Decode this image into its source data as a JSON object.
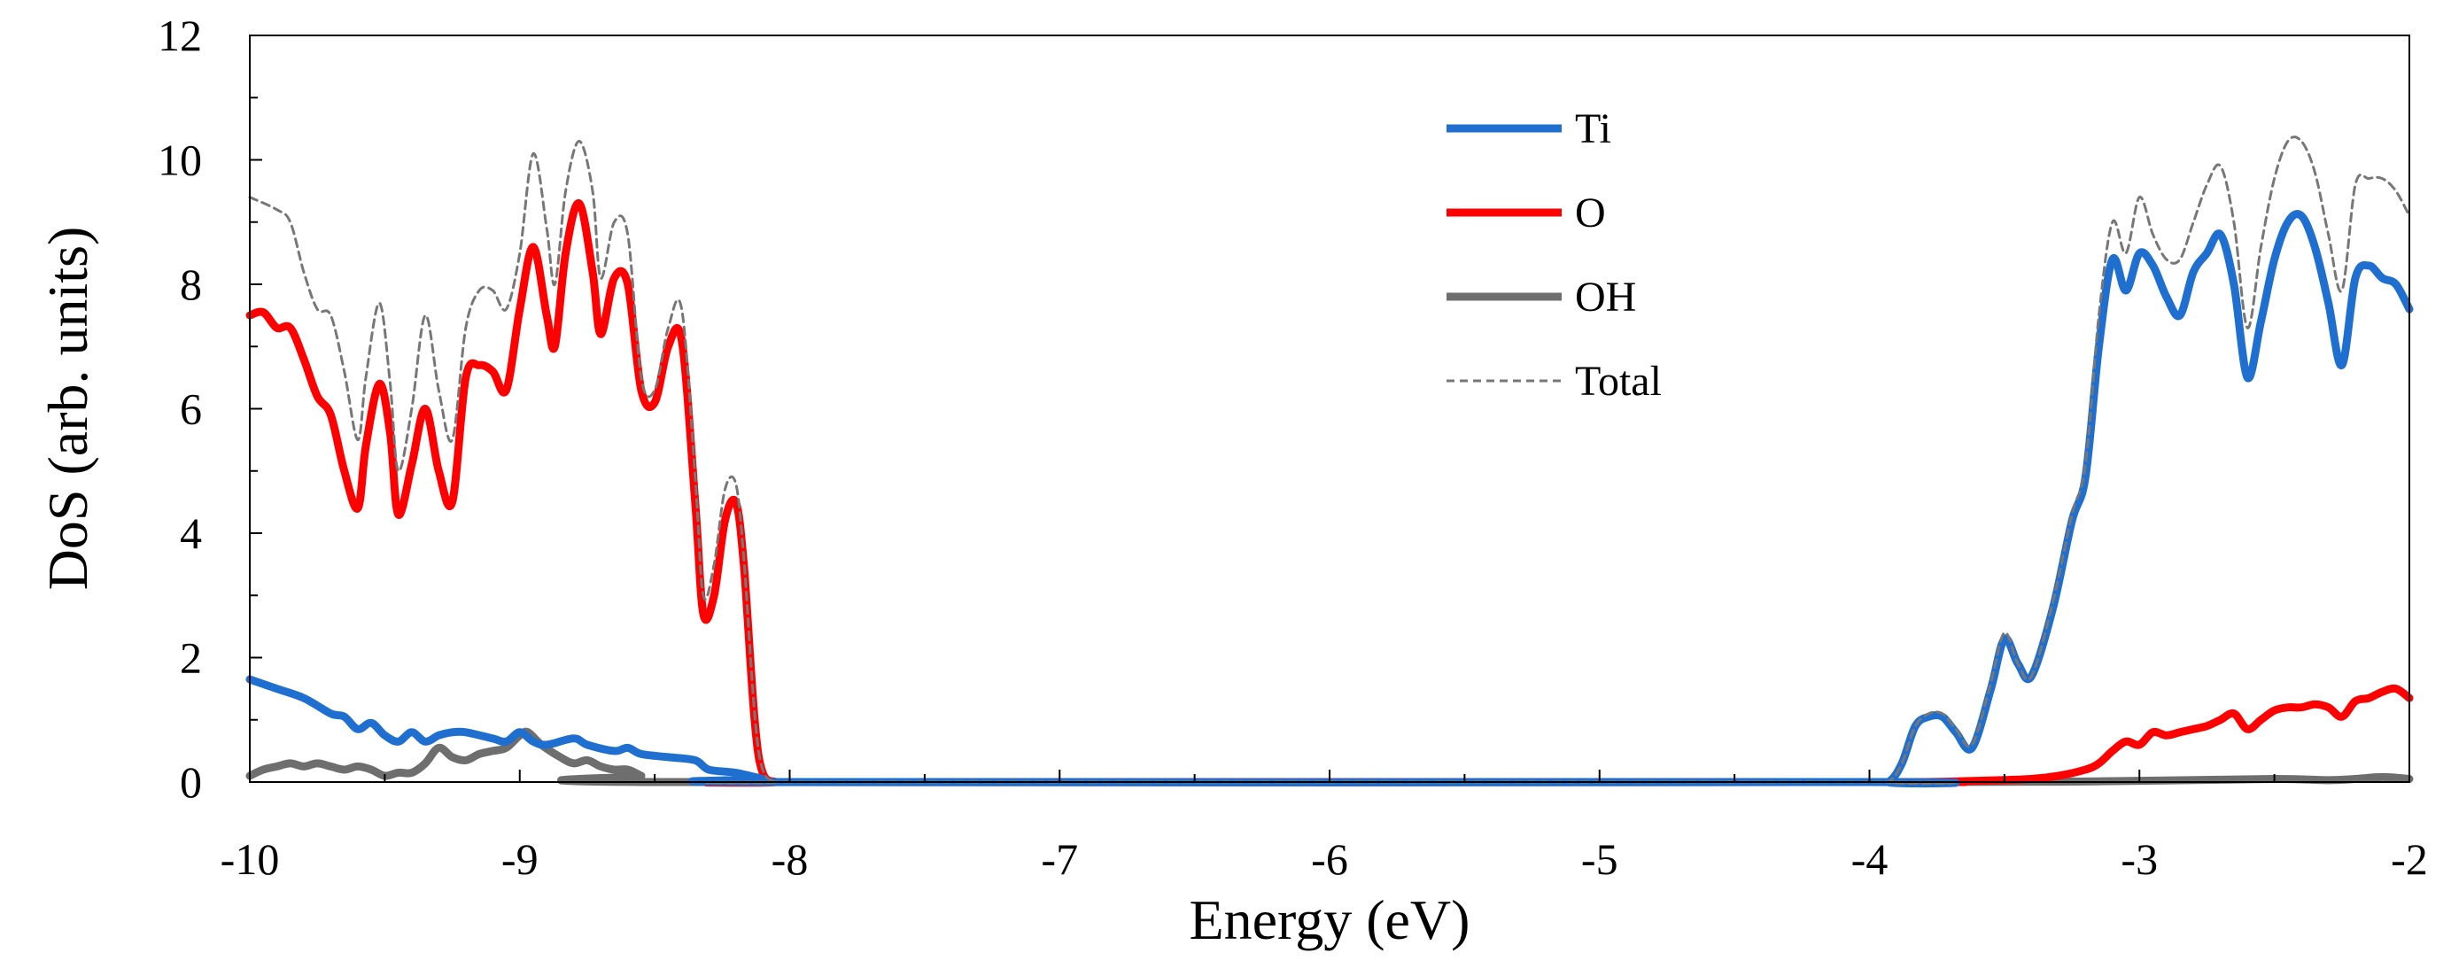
{
  "chart_data": {
    "type": "line",
    "title": "",
    "xlabel": "Energy (eV)",
    "ylabel": "DoS (arb. units)",
    "xlim": [
      -10,
      -2
    ],
    "ylim": [
      0,
      12
    ],
    "xticks": [
      -10,
      -9,
      -8,
      -7,
      -6,
      -5,
      -4,
      -3,
      -2
    ],
    "xtick_labels": [
      "-10",
      "-9",
      "-8",
      "-7",
      "-6",
      "-5",
      "-4",
      "-3",
      "-2"
    ],
    "yticks": [
      0,
      2,
      4,
      6,
      8,
      10,
      12
    ],
    "ytick_labels": [
      "0",
      "2",
      "4",
      "6",
      "8",
      "10",
      "12"
    ],
    "grid": false,
    "legend_position": "top-center",
    "series": [
      {
        "name": "Ti",
        "color": "#1f6fd0",
        "style": "solid-thick",
        "x": [
          -10,
          -9.9,
          -9.8,
          -9.7,
          -9.65,
          -9.6,
          -9.55,
          -9.5,
          -9.45,
          -9.4,
          -9.35,
          -9.3,
          -9.25,
          -9.2,
          -9.1,
          -9.05,
          -9.0,
          -8.95,
          -8.9,
          -8.8,
          -8.75,
          -8.65,
          -8.6,
          -8.55,
          -8.45,
          -8.35,
          -8.3,
          -8.2,
          -8.1,
          -8.05,
          -4.0,
          -3.93,
          -3.88,
          -3.83,
          -3.78,
          -3.73,
          -3.68,
          -3.62,
          -3.55,
          -3.5,
          -3.45,
          -3.4,
          -3.32,
          -3.25,
          -3.2,
          -3.15,
          -3.1,
          -3.05,
          -3.0,
          -2.95,
          -2.9,
          -2.85,
          -2.8,
          -2.75,
          -2.7,
          -2.65,
          -2.6,
          -2.55,
          -2.5,
          -2.45,
          -2.4,
          -2.35,
          -2.3,
          -2.25,
          -2.2,
          -2.15,
          -2.1,
          -2.05,
          -2.0
        ],
        "y": [
          1.65,
          1.5,
          1.35,
          1.1,
          1.05,
          0.85,
          0.95,
          0.75,
          0.65,
          0.8,
          0.65,
          0.75,
          0.8,
          0.8,
          0.7,
          0.65,
          0.8,
          0.65,
          0.6,
          0.7,
          0.6,
          0.5,
          0.55,
          0.45,
          0.4,
          0.35,
          0.2,
          0.15,
          0.05,
          0.0,
          0.0,
          0.0,
          0.3,
          0.9,
          1.05,
          1.05,
          0.8,
          0.55,
          1.5,
          2.3,
          1.9,
          1.7,
          2.8,
          4.2,
          4.9,
          7.0,
          8.4,
          7.9,
          8.5,
          8.3,
          7.8,
          7.5,
          8.2,
          8.5,
          8.8,
          8.0,
          6.5,
          7.4,
          8.4,
          9.0,
          9.1,
          8.6,
          7.7,
          6.7,
          8.1,
          8.3,
          8.1,
          8.0,
          7.6
        ]
      },
      {
        "name": "O",
        "color": "#ff0000",
        "style": "solid-thick",
        "x": [
          -10,
          -9.95,
          -9.9,
          -9.85,
          -9.8,
          -9.75,
          -9.7,
          -9.65,
          -9.6,
          -9.57,
          -9.52,
          -9.48,
          -9.45,
          -9.4,
          -9.35,
          -9.3,
          -9.25,
          -9.2,
          -9.15,
          -9.1,
          -9.05,
          -9.0,
          -8.95,
          -8.9,
          -8.87,
          -8.83,
          -8.78,
          -8.73,
          -8.7,
          -8.65,
          -8.6,
          -8.55,
          -8.5,
          -8.45,
          -8.4,
          -8.35,
          -8.32,
          -8.28,
          -8.24,
          -8.2,
          -8.17,
          -8.13,
          -8.1,
          -8.05,
          -8.0,
          -4.0,
          -3.8,
          -3.6,
          -3.4,
          -3.3,
          -3.2,
          -3.15,
          -3.1,
          -3.05,
          -3.0,
          -2.95,
          -2.9,
          -2.85,
          -2.8,
          -2.75,
          -2.7,
          -2.65,
          -2.6,
          -2.55,
          -2.5,
          -2.45,
          -2.4,
          -2.35,
          -2.3,
          -2.25,
          -2.2,
          -2.15,
          -2.1,
          -2.05,
          -2.0
        ],
        "y": [
          7.5,
          7.55,
          7.3,
          7.3,
          6.8,
          6.2,
          5.9,
          5.0,
          4.4,
          5.4,
          6.4,
          5.6,
          4.3,
          5.1,
          6.0,
          5.0,
          4.5,
          6.5,
          6.7,
          6.6,
          6.3,
          7.6,
          8.6,
          7.5,
          7.0,
          8.5,
          9.3,
          8.2,
          7.2,
          8.1,
          8.0,
          6.3,
          6.1,
          7.0,
          7.1,
          4.5,
          2.7,
          3.0,
          4.2,
          4.5,
          3.5,
          1.0,
          0.15,
          0.0,
          0.0,
          0.0,
          0.0,
          0.02,
          0.05,
          0.1,
          0.2,
          0.3,
          0.5,
          0.65,
          0.6,
          0.8,
          0.75,
          0.8,
          0.85,
          0.9,
          1.0,
          1.1,
          0.85,
          1.0,
          1.15,
          1.2,
          1.2,
          1.25,
          1.2,
          1.05,
          1.3,
          1.35,
          1.45,
          1.5,
          1.35
        ]
      },
      {
        "name": "OH",
        "color": "#6e6e6e",
        "style": "solid-thick",
        "x": [
          -10,
          -9.95,
          -9.9,
          -9.85,
          -9.8,
          -9.75,
          -9.7,
          -9.65,
          -9.6,
          -9.55,
          -9.5,
          -9.45,
          -9.4,
          -9.35,
          -9.3,
          -9.25,
          -9.2,
          -9.15,
          -9.1,
          -9.05,
          -9.0,
          -8.97,
          -8.92,
          -8.85,
          -8.8,
          -8.75,
          -8.7,
          -8.65,
          -8.6,
          -8.55,
          -8.5,
          -4.0,
          -3.0,
          -2.5,
          -2.3,
          -2.2,
          -2.1,
          -2.0
        ],
        "y": [
          0.1,
          0.2,
          0.25,
          0.3,
          0.25,
          0.3,
          0.25,
          0.2,
          0.25,
          0.2,
          0.1,
          0.15,
          0.15,
          0.3,
          0.55,
          0.4,
          0.35,
          0.45,
          0.5,
          0.55,
          0.75,
          0.8,
          0.6,
          0.4,
          0.3,
          0.35,
          0.25,
          0.2,
          0.2,
          0.1,
          0.0,
          0.0,
          0.02,
          0.05,
          0.03,
          0.05,
          0.08,
          0.05
        ]
      },
      {
        "name": "Total",
        "color": "#777777",
        "style": "dashed-thin",
        "x": [
          -10,
          -9.9,
          -9.85,
          -9.8,
          -9.75,
          -9.7,
          -9.65,
          -9.6,
          -9.57,
          -9.52,
          -9.48,
          -9.45,
          -9.4,
          -9.35,
          -9.3,
          -9.25,
          -9.2,
          -9.15,
          -9.1,
          -9.05,
          -9.0,
          -8.95,
          -8.9,
          -8.87,
          -8.83,
          -8.78,
          -8.73,
          -8.7,
          -8.65,
          -8.6,
          -8.55,
          -8.5,
          -8.45,
          -8.4,
          -8.35,
          -8.32,
          -8.28,
          -8.24,
          -8.2,
          -8.17,
          -8.13,
          -8.1,
          -8.05,
          -8.0,
          -4.0,
          -3.93,
          -3.88,
          -3.83,
          -3.78,
          -3.73,
          -3.68,
          -3.62,
          -3.55,
          -3.5,
          -3.45,
          -3.4,
          -3.32,
          -3.25,
          -3.2,
          -3.15,
          -3.1,
          -3.05,
          -3.0,
          -2.95,
          -2.9,
          -2.85,
          -2.8,
          -2.75,
          -2.7,
          -2.65,
          -2.6,
          -2.55,
          -2.5,
          -2.45,
          -2.4,
          -2.35,
          -2.3,
          -2.25,
          -2.2,
          -2.15,
          -2.1,
          -2.05,
          -2.0
        ],
        "y": [
          9.4,
          9.2,
          9.0,
          8.2,
          7.6,
          7.5,
          6.6,
          5.5,
          6.5,
          7.7,
          6.4,
          5.0,
          6.0,
          7.5,
          6.3,
          5.5,
          7.3,
          7.9,
          7.9,
          7.6,
          8.5,
          10.1,
          8.9,
          8.0,
          9.5,
          10.3,
          9.5,
          8.1,
          9.0,
          8.8,
          6.5,
          6.3,
          7.3,
          7.6,
          4.9,
          3.0,
          3.5,
          4.7,
          4.8,
          3.6,
          1.1,
          0.2,
          0.0,
          0.0,
          0.0,
          0.0,
          0.3,
          0.9,
          1.1,
          1.1,
          0.85,
          0.6,
          1.6,
          2.4,
          1.9,
          1.7,
          2.9,
          4.3,
          5.1,
          7.5,
          9.0,
          8.5,
          9.4,
          8.8,
          8.4,
          8.4,
          9.0,
          9.6,
          9.9,
          9.0,
          7.3,
          8.6,
          9.7,
          10.3,
          10.3,
          9.8,
          8.8,
          7.9,
          9.6,
          9.7,
          9.7,
          9.5,
          9.1
        ]
      }
    ],
    "legend": [
      {
        "label": "Ti",
        "series": 0
      },
      {
        "label": "O",
        "series": 1
      },
      {
        "label": "OH",
        "series": 2
      },
      {
        "label": "Total",
        "series": 3
      }
    ]
  }
}
